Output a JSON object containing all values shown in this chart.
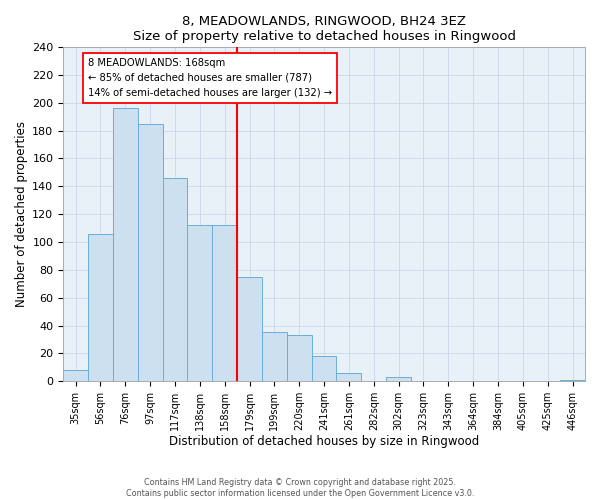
{
  "title": "8, MEADOWLANDS, RINGWOOD, BH24 3EZ",
  "subtitle": "Size of property relative to detached houses in Ringwood",
  "xlabel": "Distribution of detached houses by size in Ringwood",
  "ylabel": "Number of detached properties",
  "bar_labels": [
    "35sqm",
    "56sqm",
    "76sqm",
    "97sqm",
    "117sqm",
    "138sqm",
    "158sqm",
    "179sqm",
    "199sqm",
    "220sqm",
    "241sqm",
    "261sqm",
    "282sqm",
    "302sqm",
    "323sqm",
    "343sqm",
    "364sqm",
    "384sqm",
    "405sqm",
    "425sqm",
    "446sqm"
  ],
  "bar_heights": [
    8,
    106,
    196,
    185,
    146,
    112,
    112,
    75,
    35,
    33,
    18,
    6,
    0,
    3,
    0,
    0,
    0,
    0,
    0,
    0,
    1
  ],
  "bar_color": "#cce0f0",
  "bar_edge_color": "#6aaed6",
  "ref_line_index": 6.5,
  "annotation_title": "8 MEADOWLANDS: 168sqm",
  "annotation_line1": "← 85% of detached houses are smaller (787)",
  "annotation_line2": "14% of semi-detached houses are larger (132) →",
  "ylim": [
    0,
    240
  ],
  "yticks": [
    0,
    20,
    40,
    60,
    80,
    100,
    120,
    140,
    160,
    180,
    200,
    220,
    240
  ],
  "footer_line1": "Contains HM Land Registry data © Crown copyright and database right 2025.",
  "footer_line2": "Contains public sector information licensed under the Open Government Licence v3.0.",
  "background_color": "#ffffff",
  "plot_bg_color": "#e8f0f8",
  "grid_color": "#c8d8e8"
}
